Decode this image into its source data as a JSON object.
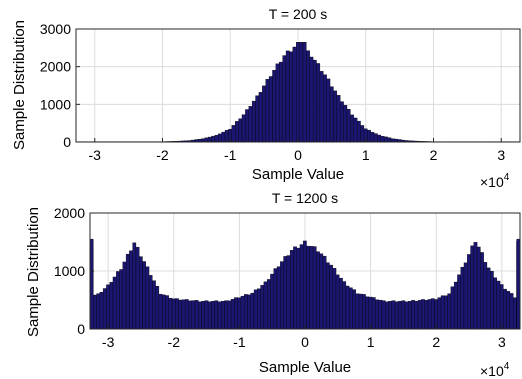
{
  "charts": [
    {
      "title": "T = 200 s",
      "xlabel": "Sample Value",
      "ylabel": "Sample Distribution",
      "x_multiplier": "×10",
      "x_multiplier_exp": "4",
      "x_ticks": [
        "-3",
        "-2",
        "-1",
        "0",
        "1",
        "2",
        "3"
      ],
      "y_ticks": [
        "0",
        "1000",
        "2000",
        "3000"
      ]
    },
    {
      "title": "T = 1200 s",
      "xlabel": "Sample Value",
      "ylabel": "Sample Distribution",
      "x_multiplier": "×10",
      "x_multiplier_exp": "4",
      "x_ticks": [
        "-3",
        "-2",
        "-1",
        "0",
        "1",
        "2",
        "3"
      ],
      "y_ticks": [
        "0",
        "1000",
        "2000"
      ]
    }
  ],
  "colors": {
    "bar_fill": "#1b1670",
    "bar_edge": "#000000",
    "grid": "#dcdcdc"
  },
  "chart_data": [
    {
      "type": "bar",
      "title": "T = 200 s",
      "xlabel": "Sample Value",
      "ylabel": "Sample Distribution",
      "x_scale_note": "x10^4",
      "xlim": [
        -3.2768,
        3.2768
      ],
      "ylim": [
        0,
        3000
      ],
      "x_ticks": [
        -3,
        -2,
        -1,
        0,
        1,
        2,
        3
      ],
      "y_ticks": [
        0,
        1000,
        2000,
        3000
      ],
      "grid": true,
      "bin_width": 0.05,
      "distribution": "approximately normal, mean 0, std 0.5 (x10^4)",
      "bins": [
        {
          "x": -2.0,
          "y": 10
        },
        {
          "x": -1.8,
          "y": 20
        },
        {
          "x": -1.6,
          "y": 40
        },
        {
          "x": -1.4,
          "y": 90
        },
        {
          "x": -1.2,
          "y": 180
        },
        {
          "x": -1.0,
          "y": 350
        },
        {
          "x": -0.8,
          "y": 730
        },
        {
          "x": -0.6,
          "y": 1210
        },
        {
          "x": -0.4,
          "y": 1780
        },
        {
          "x": -0.2,
          "y": 2300
        },
        {
          "x": 0.0,
          "y": 2600
        },
        {
          "x": 0.2,
          "y": 2300
        },
        {
          "x": 0.4,
          "y": 1780
        },
        {
          "x": 0.6,
          "y": 1210
        },
        {
          "x": 0.8,
          "y": 730
        },
        {
          "x": 1.0,
          "y": 350
        },
        {
          "x": 1.2,
          "y": 180
        },
        {
          "x": 1.4,
          "y": 90
        },
        {
          "x": 1.6,
          "y": 40
        },
        {
          "x": 1.8,
          "y": 20
        },
        {
          "x": 2.0,
          "y": 10
        }
      ],
      "peak": {
        "x": 0.05,
        "y": 2650
      }
    },
    {
      "type": "bar",
      "title": "T = 1200 s",
      "xlabel": "Sample Value",
      "ylabel": "Sample Distribution",
      "x_scale_note": "x10^4",
      "xlim": [
        -3.2768,
        3.2768
      ],
      "ylim": [
        0,
        2000
      ],
      "x_ticks": [
        -3,
        -2,
        -1,
        0,
        1,
        2,
        3
      ],
      "y_ticks": [
        0,
        1000,
        2000
      ],
      "grid": true,
      "bin_width": 0.05,
      "distribution": "trimodal: peaks near -2.6, 0 and 2.6 (x10^4) over a baseline of about 470",
      "bins": [
        {
          "x": -3.25,
          "y": 1550
        },
        {
          "x": -3.2,
          "y": 550
        },
        {
          "x": -3.0,
          "y": 750
        },
        {
          "x": -2.8,
          "y": 1050
        },
        {
          "x": -2.6,
          "y": 1490
        },
        {
          "x": -2.4,
          "y": 1050
        },
        {
          "x": -2.2,
          "y": 610
        },
        {
          "x": -2.0,
          "y": 520
        },
        {
          "x": -1.6,
          "y": 480
        },
        {
          "x": -1.2,
          "y": 480
        },
        {
          "x": -0.8,
          "y": 620
        },
        {
          "x": -0.6,
          "y": 800
        },
        {
          "x": -0.4,
          "y": 1100
        },
        {
          "x": -0.2,
          "y": 1360
        },
        {
          "x": 0.0,
          "y": 1490
        },
        {
          "x": 0.2,
          "y": 1360
        },
        {
          "x": 0.4,
          "y": 1100
        },
        {
          "x": 0.6,
          "y": 800
        },
        {
          "x": 0.8,
          "y": 620
        },
        {
          "x": 1.2,
          "y": 480
        },
        {
          "x": 1.6,
          "y": 480
        },
        {
          "x": 2.0,
          "y": 520
        },
        {
          "x": 2.2,
          "y": 610
        },
        {
          "x": 2.4,
          "y": 1050
        },
        {
          "x": 2.6,
          "y": 1530
        },
        {
          "x": 2.8,
          "y": 1050
        },
        {
          "x": 3.0,
          "y": 750
        },
        {
          "x": 3.2,
          "y": 550
        },
        {
          "x": 3.25,
          "y": 1550
        }
      ],
      "edge_spikes": [
        {
          "x": -3.25,
          "y": 1550
        },
        {
          "x": 3.25,
          "y": 1550
        }
      ]
    }
  ]
}
